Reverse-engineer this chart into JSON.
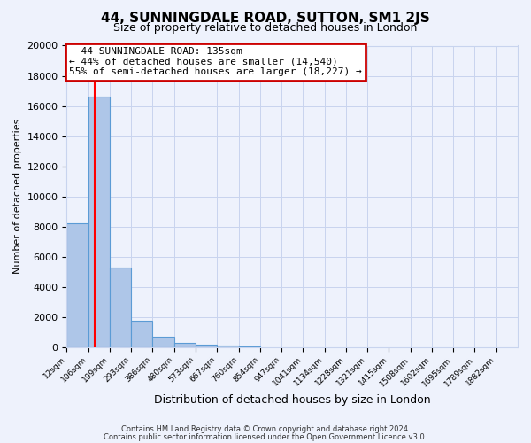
{
  "title": "44, SUNNINGDALE ROAD, SUTTON, SM1 2JS",
  "subtitle": "Size of property relative to detached houses in London",
  "xlabel": "Distribution of detached houses by size in London",
  "ylabel": "Number of detached properties",
  "bar_values": [
    8200,
    16600,
    5300,
    1750,
    700,
    300,
    150,
    80,
    50
  ],
  "all_labels": [
    "12sqm",
    "106sqm",
    "199sqm",
    "293sqm",
    "386sqm",
    "480sqm",
    "573sqm",
    "667sqm",
    "760sqm",
    "854sqm",
    "947sqm",
    "1041sqm",
    "1134sqm",
    "1228sqm",
    "1321sqm",
    "1415sqm",
    "1508sqm",
    "1602sqm",
    "1695sqm",
    "1789sqm",
    "1882sqm"
  ],
  "bar_color": "#aec6e8",
  "bar_edge_color": "#5b9bd5",
  "red_line_x": 1.3,
  "annotation_line1": "44 SUNNINGDALE ROAD: 135sqm",
  "annotation_line2": "← 44% of detached houses are smaller (14,540)",
  "annotation_line3": "55% of semi-detached houses are larger (18,227) →",
  "annotation_box_color": "#ffffff",
  "annotation_box_edge": "#cc0000",
  "ylim": [
    0,
    20000
  ],
  "yticks": [
    0,
    2000,
    4000,
    6000,
    8000,
    10000,
    12000,
    14000,
    16000,
    18000,
    20000
  ],
  "footer1": "Contains HM Land Registry data © Crown copyright and database right 2024.",
  "footer2": "Contains public sector information licensed under the Open Government Licence v3.0.",
  "bg_color": "#eef2fc",
  "grid_color": "#c8d4ee",
  "title_fontsize": 11,
  "subtitle_fontsize": 9
}
